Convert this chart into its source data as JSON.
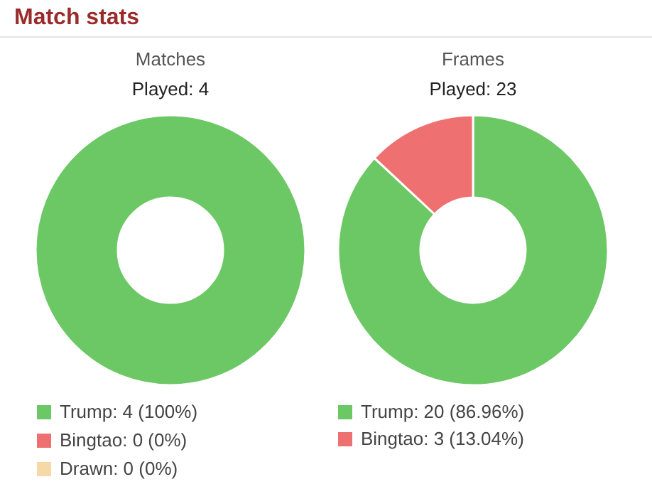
{
  "chart_data": [
    {
      "type": "other",
      "title": "Match stats"
    },
    {
      "type": "donut",
      "title": "Matches",
      "subtitle": "Played: 4",
      "categories": [
        "Trump",
        "Bingtao",
        "Drawn"
      ],
      "values": [
        4,
        0,
        0
      ],
      "colors": [
        "#6cc865",
        "#ef7070",
        "#f7d9a8"
      ],
      "value_labels": [
        "4 (100%)",
        "0 (0%)",
        "0 (0%)"
      ],
      "legend": "bottom"
    },
    {
      "type": "donut",
      "title": "Frames",
      "subtitle": "Played: 23",
      "categories": [
        "Trump",
        "Bingtao"
      ],
      "values": [
        20,
        3
      ],
      "colors": [
        "#6cc865",
        "#ef7070"
      ],
      "value_labels": [
        "20 (86.96%)",
        "3 (13.04%)"
      ],
      "legend": "bottom"
    }
  ]
}
